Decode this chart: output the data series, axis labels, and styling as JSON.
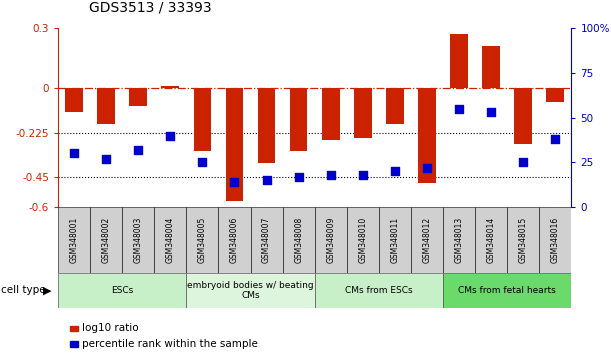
{
  "title": "GDS3513 / 33393",
  "samples": [
    "GSM348001",
    "GSM348002",
    "GSM348003",
    "GSM348004",
    "GSM348005",
    "GSM348006",
    "GSM348007",
    "GSM348008",
    "GSM348009",
    "GSM348010",
    "GSM348011",
    "GSM348012",
    "GSM348013",
    "GSM348014",
    "GSM348015",
    "GSM348016"
  ],
  "log10_ratio": [
    -0.12,
    -0.18,
    -0.09,
    0.01,
    -0.32,
    -0.57,
    -0.38,
    -0.32,
    -0.26,
    -0.25,
    -0.18,
    -0.48,
    0.27,
    0.21,
    -0.28,
    -0.07
  ],
  "percentile_rank": [
    30,
    27,
    32,
    40,
    25,
    14,
    15,
    17,
    18,
    18,
    20,
    22,
    55,
    53,
    25,
    38
  ],
  "ylim_left": [
    -0.6,
    0.3
  ],
  "ylim_right": [
    0,
    100
  ],
  "yticks_left": [
    -0.6,
    -0.45,
    -0.225,
    0,
    0.3
  ],
  "yticks_right": [
    0,
    25,
    50,
    75,
    100
  ],
  "ytick_labels_left": [
    "-0.6",
    "-0.45",
    "-0.225",
    "0",
    "0.3"
  ],
  "ytick_labels_right": [
    "0",
    "25",
    "50",
    "75",
    "100%"
  ],
  "hlines": [
    -0.225,
    -0.45
  ],
  "cell_type_groups": [
    {
      "label": "ESCs",
      "start": 0,
      "end": 3,
      "color": "#c8f0c8"
    },
    {
      "label": "embryoid bodies w/ beating\nCMs",
      "start": 4,
      "end": 7,
      "color": "#dcf5dc"
    },
    {
      "label": "CMs from ESCs",
      "start": 8,
      "end": 11,
      "color": "#c8f0c8"
    },
    {
      "label": "CMs from fetal hearts",
      "start": 12,
      "end": 15,
      "color": "#6ada6a"
    }
  ],
  "bar_color": "#cc2200",
  "dot_color": "#0000cc",
  "bar_width": 0.55,
  "dot_size": 28,
  "legend_log10": "log10 ratio",
  "legend_percentile": "percentile rank within the sample",
  "cell_type_label": "cell type",
  "background_color": "#ffffff",
  "left_tick_color": "#cc2200",
  "right_tick_color": "#0000cc",
  "sample_box_color": "#d0d0d0"
}
